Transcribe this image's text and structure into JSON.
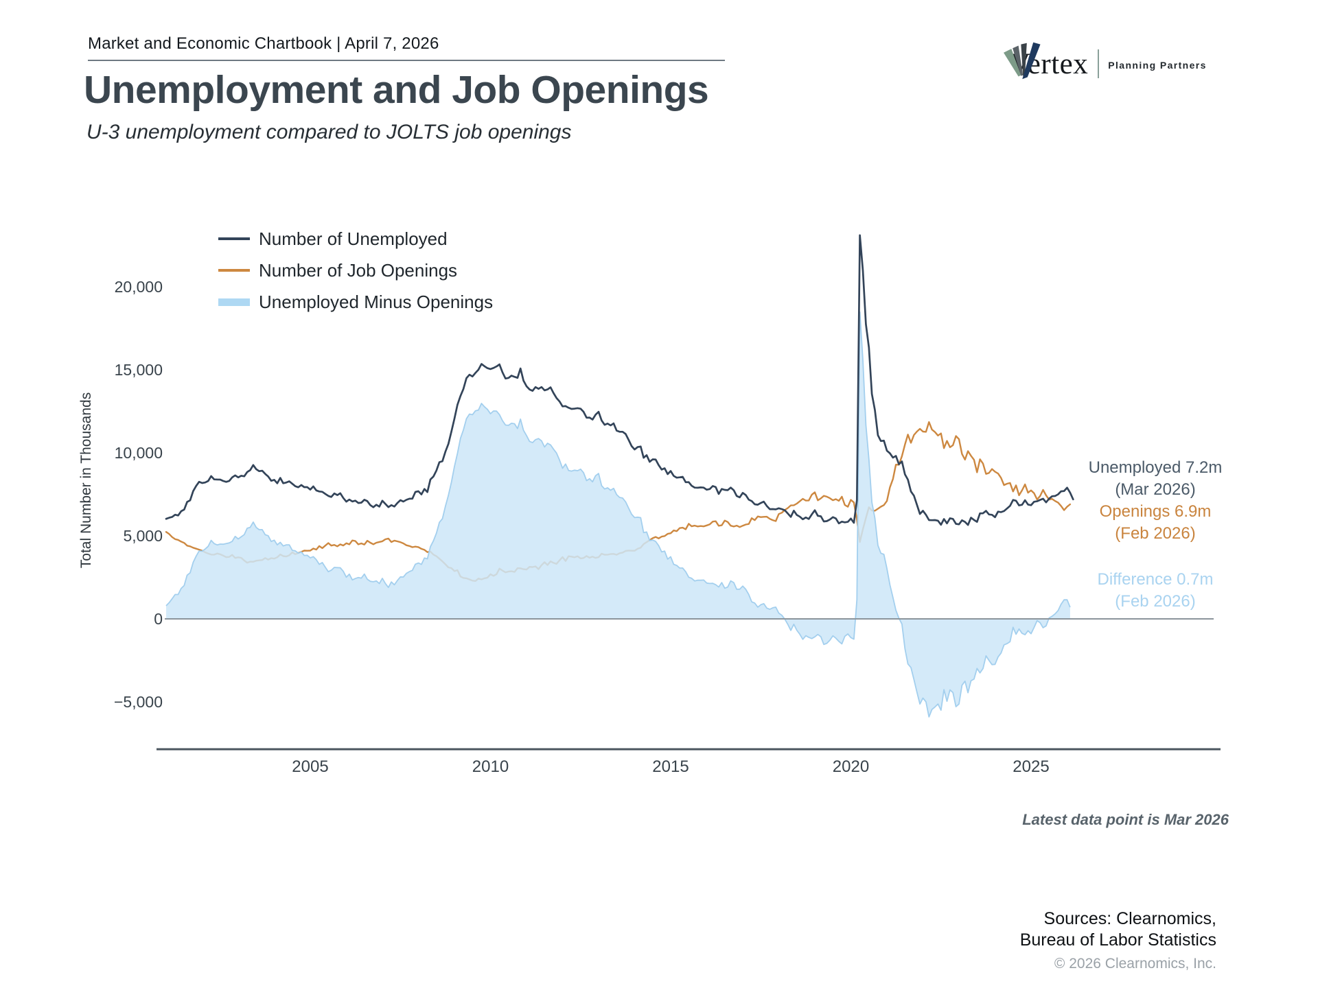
{
  "header": {
    "title": "Market and Economic Chartbook | April 7, 2026"
  },
  "logo": {
    "brand": "Vertex",
    "tagline": "Planning Partners"
  },
  "page_title": "Unemployment and Job Openings",
  "page_subtitle": "U-3 unemployment compared to JOLTS job openings",
  "callouts": {
    "unemployed": {
      "line1": "Unemployed 7.2m",
      "line2": "(Mar 2026)",
      "color": "#4b5a68"
    },
    "openings": {
      "line1": "Openings 6.9m",
      "line2": "(Feb 2026)",
      "color": "#c9843e"
    },
    "difference": {
      "line1": "Difference 0.7m",
      "line2": "(Feb 2026)",
      "color": "#a9d3f0"
    }
  },
  "footnote": "Latest data point is Mar 2026",
  "sources": {
    "line1": "Sources: Clearnomics,",
    "line2": "Bureau of Labor Statistics",
    "copyright": "© 2026 Clearnomics, Inc."
  },
  "chart_data": {
    "type": "line",
    "title": "Unemployment and Job Openings",
    "ylabel": "Total Number in Thousands",
    "unit": "thousands",
    "frequency": "monthly",
    "start": {
      "year": 2001,
      "month": 1
    },
    "xlim": [
      2001.0,
      2026.25
    ],
    "ylim": [
      -7900,
      23500
    ],
    "grid": false,
    "legend_position": "top-left",
    "y_ticks": [
      {
        "value": 20000,
        "label": "20,000"
      },
      {
        "value": 15000,
        "label": "15,000"
      },
      {
        "value": 10000,
        "label": "10,000"
      },
      {
        "value": 5000,
        "label": "5,000"
      },
      {
        "value": 0,
        "label": "0"
      },
      {
        "value": -5000,
        "label": "−5,000"
      }
    ],
    "x_ticks": [
      {
        "value": 2005,
        "label": "2005"
      },
      {
        "value": 2010,
        "label": "2010"
      },
      {
        "value": 2015,
        "label": "2015"
      },
      {
        "value": 2020,
        "label": "2020"
      },
      {
        "value": 2025,
        "label": "2025"
      }
    ],
    "series": [
      {
        "name": "Number of Unemployed",
        "color": "#334459",
        "last_point": {
          "label": "Unemployed 7.2m",
          "date": "Mar 2026",
          "value": 7200
        },
        "values": [
          6023,
          6089,
          6141,
          6271,
          6226,
          6484,
          6583,
          7042,
          7142,
          7694,
          8003,
          8258,
          8182,
          8215,
          8304,
          8599,
          8399,
          8393,
          8390,
          8304,
          8251,
          8307,
          8520,
          8640,
          8520,
          8618,
          8588,
          8842,
          8957,
          9266,
          9011,
          8896,
          8921,
          8732,
          8576,
          8317,
          8370,
          8167,
          8491,
          8170,
          8212,
          8286,
          8136,
          7990,
          7927,
          8061,
          7932,
          7934,
          7784,
          7980,
          7737,
          7672,
          7651,
          7524,
          7406,
          7345,
          7553,
          7453,
          7566,
          7279,
          7064,
          7184,
          7072,
          7120,
          6980,
          7001,
          7175,
          7091,
          6847,
          6727,
          6872,
          6762,
          7116,
          6927,
          6731,
          6850,
          6766,
          6979,
          7149,
          7067,
          7170,
          7237,
          7240,
          7645,
          7685,
          7497,
          7822,
          7637,
          8395,
          8575,
          8937,
          9438,
          9494,
          10074,
          10538,
          11286,
          12058,
          12898,
          13426,
          13853,
          14499,
          14707,
          14601,
          14814,
          15009,
          15352,
          15219,
          15098,
          15046,
          15113,
          15202,
          15325,
          14849,
          14474,
          14512,
          14648,
          14579,
          14516,
          15081,
          14348,
          14013,
          13820,
          13737,
          13957,
          13855,
          13962,
          13763,
          13818,
          13948,
          13594,
          13302,
          13093,
          12797,
          12813,
          12713,
          12646,
          12660,
          12692,
          12656,
          12471,
          12115,
          12124,
          12005,
          12298,
          12471,
          11950,
          11689,
          11760,
          11654,
          11774,
          11340,
          11268,
          11270,
          11136,
          10787,
          10404,
          10202,
          10349,
          10380,
          9702,
          9859,
          9460,
          9608,
          9599,
          9262,
          8990,
          9071,
          8718,
          8903,
          8610,
          8504,
          8526,
          8555,
          8232,
          8235,
          8017,
          7904,
          7898,
          7918,
          7907,
          7783,
          7820,
          8001,
          7937,
          7524,
          7824,
          7770,
          7754,
          7904,
          7747,
          7399,
          7318,
          7587,
          7460,
          7178,
          7094,
          6899,
          6877,
          6981,
          7061,
          6801,
          6606,
          6610,
          6594,
          6662,
          6611,
          6540,
          6348,
          6140,
          6516,
          6256,
          6159,
          5998,
          6108,
          6018,
          6294,
          6541,
          6205,
          6178,
          5866,
          5888,
          5984,
          6122,
          6051,
          5753,
          5857,
          5813,
          5844,
          6040,
          5787,
          7140,
          23109,
          20985,
          17750,
          16338,
          13550,
          12580,
          11061,
          10710,
          10736,
          10130,
          9972,
          9710,
          9812,
          9316,
          9484,
          8702,
          8384,
          7674,
          7419,
          6877,
          6319,
          6513,
          6270,
          5952,
          5941,
          5950,
          5912,
          5670,
          6014,
          5753,
          6059,
          6021,
          5722,
          5694,
          5936,
          5839,
          5657,
          6097,
          5957,
          5841,
          6355,
          6360,
          6506,
          6291,
          6268,
          6124,
          6458,
          6429,
          6492,
          6649,
          6811,
          7163,
          7115,
          6834,
          6872,
          7145,
          6886,
          6849,
          7052,
          7083,
          7165,
          7237,
          7015,
          7240,
          7384,
          7400,
          7500,
          7680,
          7700,
          7900,
          7600,
          7200
        ]
      },
      {
        "name": "Number of Job Openings",
        "color": "#cd8840",
        "last_point": {
          "label": "Openings 6.9m",
          "date": "Feb 2026",
          "value": 6900
        },
        "values": [
          5234,
          5112,
          4925,
          4802,
          4757,
          4651,
          4573,
          4410,
          4366,
          4287,
          4229,
          4168,
          4109,
          4010,
          3932,
          3870,
          3868,
          3939,
          3887,
          3809,
          3720,
          3731,
          3856,
          3671,
          3706,
          3676,
          3514,
          3384,
          3445,
          3437,
          3505,
          3525,
          3545,
          3665,
          3568,
          3656,
          3630,
          3710,
          3880,
          3779,
          3755,
          3829,
          4007,
          3891,
          3968,
          4034,
          4113,
          4105,
          4111,
          4234,
          4175,
          4386,
          4260,
          4412,
          4565,
          4415,
          4454,
          4368,
          4489,
          4416,
          4555,
          4489,
          4725,
          4691,
          4487,
          4547,
          4477,
          4708,
          4586,
          4492,
          4585,
          4634,
          4674,
          4793,
          4838,
          4628,
          4713,
          4671,
          4619,
          4546,
          4432,
          4388,
          4317,
          4352,
          4322,
          4218,
          4155,
          4021,
          4049,
          3872,
          3773,
          3625,
          3463,
          3285,
          3101,
          3056,
          2882,
          2933,
          2550,
          2469,
          2442,
          2374,
          2303,
          2283,
          2431,
          2376,
          2441,
          2482,
          2691,
          2592,
          2689,
          3024,
          2910,
          2802,
          2853,
          2869,
          2827,
          3055,
          3047,
          2993,
          2972,
          3131,
          3120,
          3162,
          2995,
          3237,
          3412,
          3243,
          3468,
          3373,
          3313,
          3525,
          3725,
          3485,
          3773,
          3747,
          3707,
          3767,
          3641,
          3666,
          3787,
          3681,
          3747,
          3673,
          3714,
          3927,
          3865,
          3867,
          3907,
          3913,
          3858,
          3954,
          3992,
          4092,
          4114,
          4104,
          4104,
          4225,
          4287,
          4506,
          4626,
          4739,
          4859,
          4932,
          4847,
          4956,
          4987,
          5118,
          5158,
          5325,
          5283,
          5465,
          5491,
          5395,
          5728,
          5576,
          5617,
          5566,
          5591,
          5570,
          5628,
          5689,
          5860,
          5879,
          5608,
          5637,
          5921,
          5836,
          5613,
          5561,
          5617,
          5529,
          5613,
          5680,
          5716,
          6068,
          5947,
          6170,
          6130,
          6145,
          6151,
          6026,
          5945,
          5887,
          6313,
          6392,
          6556,
          6675,
          6833,
          6842,
          6941,
          7084,
          7231,
          7126,
          7131,
          7479,
          7625,
          7142,
          7255,
          7409,
          7358,
          7268,
          7144,
          7211,
          7110,
          7361,
          6861,
          6752,
          7170,
          7012,
          5981,
          4630,
          5397,
          6072,
          6724,
          6526,
          6514,
          6632,
          6756,
          6853,
          7099,
          7922,
          8420,
          9290,
          9280,
          9800,
          10500,
          11098,
          10602,
          11075,
          11283,
          11448,
          11283,
          11266,
          11855,
          11400,
          11254,
          11040,
          11170,
          10280,
          10717,
          10334,
          10458,
          11012,
          10824,
          9931,
          9590,
          10103,
          9824,
          9582,
          8827,
          9610,
          9350,
          8733,
          8790,
          9026,
          8863,
          8756,
          8488,
          8059,
          8140,
          8184,
          7673,
          8040,
          7443,
          7744,
          8098,
          7600,
          7740,
          7568,
          7192,
          7391,
          7769,
          7437,
          7181,
          7227,
          7100,
          7000,
          6800,
          6550,
          6750,
          6900
        ]
      },
      {
        "name": "Unemployed Minus Openings",
        "type": "area",
        "derived": "series0_minus_series1",
        "fill": "#cde6f8",
        "stroke": "#a3cfee",
        "last_point": {
          "label": "Difference 0.7m",
          "date": "Feb 2026",
          "value": 700
        }
      }
    ]
  }
}
